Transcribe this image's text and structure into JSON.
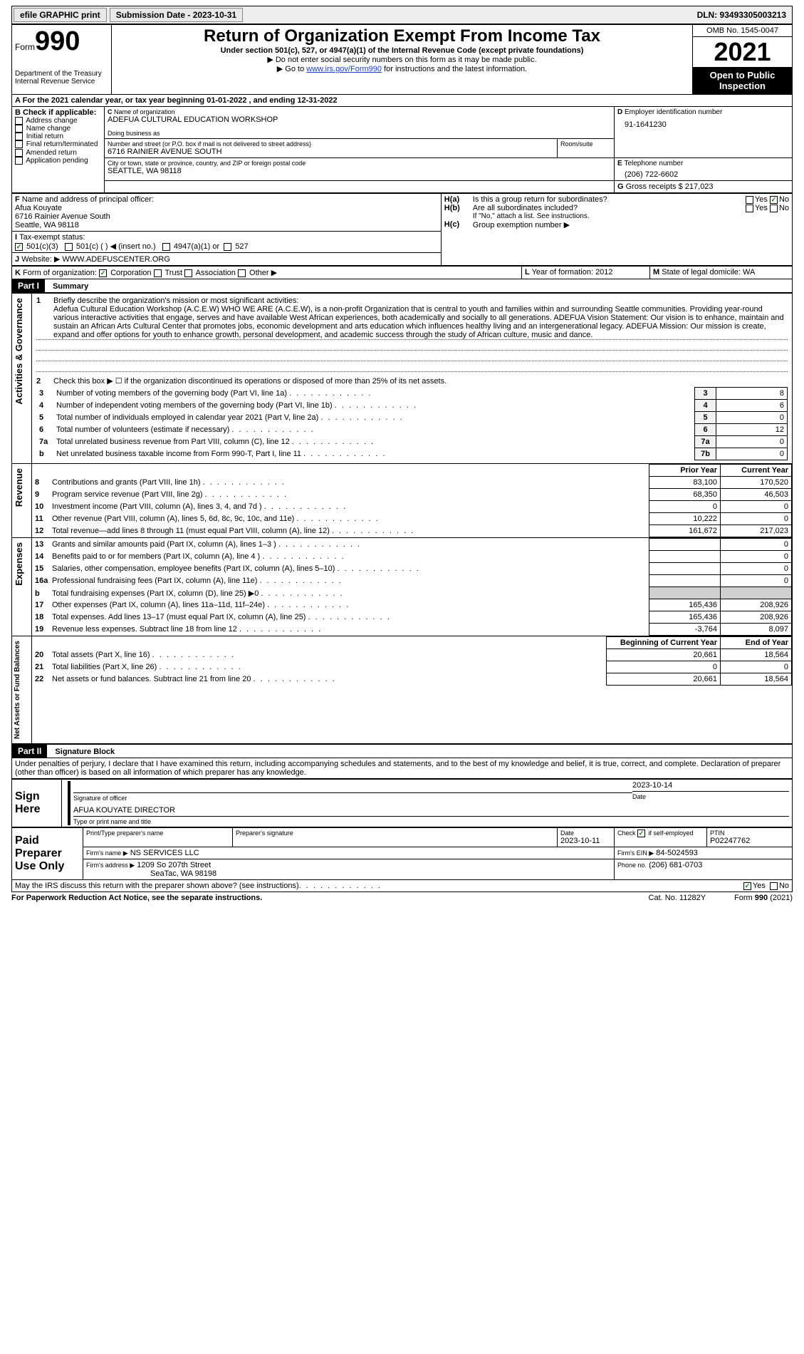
{
  "topbar": {
    "efile": "efile GRAPHIC print",
    "submission_label": "Submission Date - 2023-10-31",
    "dln": "DLN: 93493305003213"
  },
  "header": {
    "form_label": "Form",
    "form_no": "990",
    "dept": "Department of the Treasury",
    "irs": "Internal Revenue Service",
    "title": "Return of Organization Exempt From Income Tax",
    "sub1": "Under section 501(c), 527, or 4947(a)(1) of the Internal Revenue Code (except private foundations)",
    "sub2": "Do not enter social security numbers on this form as it may be made public.",
    "sub3_pre": "Go to ",
    "sub3_link": "www.irs.gov/Form990",
    "sub3_post": " for instructions and the latest information.",
    "omb": "OMB No. 1545-0047",
    "year": "2021",
    "open": "Open to Public Inspection"
  },
  "periodA": "For the 2021 calendar year, or tax year beginning 01-01-2022   , and ending 12-31-2022",
  "B": {
    "title": "Check if applicable:",
    "items": [
      "Address change",
      "Name change",
      "Initial return",
      "Final return/terminated",
      "Amended return",
      "Application pending"
    ]
  },
  "C": {
    "name_label": "Name of organization",
    "name": "ADEFUA CULTURAL EDUCATION WORKSHOP",
    "dba_label": "Doing business as",
    "dba": "",
    "addr_label": "Number and street (or P.O. box if mail is not delivered to street address)",
    "room_label": "Room/suite",
    "addr": "6716 RAINIER AVENUE SOUTH",
    "city_label": "City or town, state or province, country, and ZIP or foreign postal code",
    "city": "SEATTLE, WA  98118"
  },
  "D": {
    "label": "Employer identification number",
    "value": "91-1641230"
  },
  "E": {
    "label": "Telephone number",
    "value": "(206) 722-6602"
  },
  "G": {
    "label": "Gross receipts $",
    "value": "217,023"
  },
  "F": {
    "label": "Name and address of principal officer:",
    "name": "Afua Kouyate",
    "addr1": "6716 Rainier Avenue South",
    "addr2": "Seattle, WA  98118"
  },
  "H": {
    "a": "Is this a group return for subordinates?",
    "b": "Are all subordinates included?",
    "b_note": "If \"No,\" attach a list. See instructions.",
    "c": "Group exemption number ▶"
  },
  "I": {
    "label": "Tax-exempt status:",
    "opts": [
      "501(c)(3)",
      "501(c) (  ) ◀ (insert no.)",
      "4947(a)(1) or",
      "527"
    ]
  },
  "J": {
    "label": "Website: ▶",
    "value": "WWW.ADEFUSCENTER.ORG"
  },
  "K": {
    "label": "Form of organization:",
    "opts": [
      "Corporation",
      "Trust",
      "Association",
      "Other ▶"
    ]
  },
  "L": {
    "label": "Year of formation:",
    "value": "2012"
  },
  "M": {
    "label": "State of legal domicile:",
    "value": "WA"
  },
  "part1": {
    "hdr": "Part I",
    "title": "Summary",
    "side_gov": "Activities & Governance",
    "side_rev": "Revenue",
    "side_exp": "Expenses",
    "side_net": "Net Assets or Fund Balances",
    "q1": "Briefly describe the organization's mission or most significant activities:",
    "mission": "Adefua Cultural Education Workshop (A.C.E.W) WHO WE ARE (A.C.E.W), is a non-profit Organization that is central to youth and families within and surrounding Seattle communities. Providing year-round various interactive activities that engage, serves and have available West African experiences, both academically and socially to all generations. ADEFUA Vision Statement: Our vision is to enhance, maintain and sustain an African Arts Cultural Center that promotes jobs, economic development and arts education which influences healthy living and an intergenerational legacy. ADEFUA Mission: Our mission is create, expand and offer options for youth to enhance growth, personal development, and academic success through the study of African culture, music and dance.",
    "q2": "Check this box ▶ ☐ if the organization discontinued its operations or disposed of more than 25% of its net assets.",
    "lines_gov": [
      {
        "n": "3",
        "t": "Number of voting members of the governing body (Part VI, line 1a)",
        "idx": "3",
        "v": "8"
      },
      {
        "n": "4",
        "t": "Number of independent voting members of the governing body (Part VI, line 1b)",
        "idx": "4",
        "v": "6"
      },
      {
        "n": "5",
        "t": "Total number of individuals employed in calendar year 2021 (Part V, line 2a)",
        "idx": "5",
        "v": "0"
      },
      {
        "n": "6",
        "t": "Total number of volunteers (estimate if necessary)",
        "idx": "6",
        "v": "12"
      },
      {
        "n": "7a",
        "t": "Total unrelated business revenue from Part VIII, column (C), line 12",
        "idx": "7a",
        "v": "0"
      },
      {
        "n": "b",
        "t": "Net unrelated business taxable income from Form 990-T, Part I, line 11",
        "idx": "7b",
        "v": "0"
      }
    ],
    "col_prior": "Prior Year",
    "col_curr": "Current Year",
    "lines_rev": [
      {
        "n": "8",
        "t": "Contributions and grants (Part VIII, line 1h)",
        "p": "83,100",
        "c": "170,520"
      },
      {
        "n": "9",
        "t": "Program service revenue (Part VIII, line 2g)",
        "p": "68,350",
        "c": "46,503"
      },
      {
        "n": "10",
        "t": "Investment income (Part VIII, column (A), lines 3, 4, and 7d )",
        "p": "0",
        "c": "0"
      },
      {
        "n": "11",
        "t": "Other revenue (Part VIII, column (A), lines 5, 6d, 8c, 9c, 10c, and 11e)",
        "p": "10,222",
        "c": "0"
      },
      {
        "n": "12",
        "t": "Total revenue—add lines 8 through 11 (must equal Part VIII, column (A), line 12)",
        "p": "161,672",
        "c": "217,023"
      }
    ],
    "lines_exp": [
      {
        "n": "13",
        "t": "Grants and similar amounts paid (Part IX, column (A), lines 1–3 )",
        "p": "",
        "c": "0"
      },
      {
        "n": "14",
        "t": "Benefits paid to or for members (Part IX, column (A), line 4 )",
        "p": "",
        "c": "0"
      },
      {
        "n": "15",
        "t": "Salaries, other compensation, employee benefits (Part IX, column (A), lines 5–10)",
        "p": "",
        "c": "0"
      },
      {
        "n": "16a",
        "t": "Professional fundraising fees (Part IX, column (A), line 11e)",
        "p": "",
        "c": "0"
      },
      {
        "n": "b",
        "t": "Total fundraising expenses (Part IX, column (D), line 25) ▶0",
        "p": "GREY",
        "c": "GREY"
      },
      {
        "n": "17",
        "t": "Other expenses (Part IX, column (A), lines 11a–11d, 11f–24e)",
        "p": "165,436",
        "c": "208,926"
      },
      {
        "n": "18",
        "t": "Total expenses. Add lines 13–17 (must equal Part IX, column (A), line 25)",
        "p": "165,436",
        "c": "208,926"
      },
      {
        "n": "19",
        "t": "Revenue less expenses. Subtract line 18 from line 12",
        "p": "-3,764",
        "c": "8,097"
      }
    ],
    "col_beg": "Beginning of Current Year",
    "col_end": "End of Year",
    "lines_net": [
      {
        "n": "20",
        "t": "Total assets (Part X, line 16)",
        "p": "20,661",
        "c": "18,564"
      },
      {
        "n": "21",
        "t": "Total liabilities (Part X, line 26)",
        "p": "0",
        "c": "0"
      },
      {
        "n": "22",
        "t": "Net assets or fund balances. Subtract line 21 from line 20",
        "p": "20,661",
        "c": "18,564"
      }
    ]
  },
  "part2": {
    "hdr": "Part II",
    "title": "Signature Block",
    "decl": "Under penalties of perjury, I declare that I have examined this return, including accompanying schedules and statements, and to the best of my knowledge and belief, it is true, correct, and complete. Declaration of preparer (other than officer) is based on all information of which preparer has any knowledge.",
    "sign_here": "Sign Here",
    "sig_officer": "Signature of officer",
    "date_label": "Date",
    "sig_date": "2023-10-14",
    "officer_name": "AFUA KOUYATE  DIRECTOR",
    "type_name": "Type or print name and title",
    "paid": "Paid Preparer Use Only",
    "prep_name_label": "Print/Type preparer's name",
    "prep_sig_label": "Preparer's signature",
    "prep_date_label": "Date",
    "prep_date": "2023-10-11",
    "self_emp": "Check ☑ if self-employed",
    "ptin_label": "PTIN",
    "ptin": "P02247762",
    "firm_name_label": "Firm's name   ▶",
    "firm_name": "NS SERVICES LLC",
    "firm_ein_label": "Firm's EIN ▶",
    "firm_ein": "84-5024593",
    "firm_addr_label": "Firm's address ▶",
    "firm_addr1": "1209 So 207th Street",
    "firm_addr2": "SeaTac, WA  98198",
    "firm_phone_label": "Phone no.",
    "firm_phone": "(206) 681-0703",
    "discuss": "May the IRS discuss this return with the preparer shown above? (see instructions)"
  },
  "footer": {
    "paperwork": "For Paperwork Reduction Act Notice, see the separate instructions.",
    "cat": "Cat. No. 11282Y",
    "form": "Form 990 (2021)"
  },
  "colors": {
    "link": "#1a3fcc",
    "check": "#0a7a0a",
    "grey_fill": "#d0d0d0"
  }
}
